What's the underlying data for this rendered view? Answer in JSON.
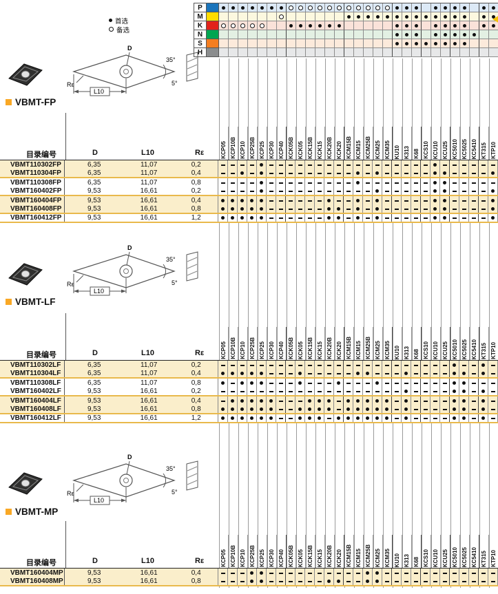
{
  "legend": {
    "first_choice": "首选",
    "alternate": "备选"
  },
  "grades": [
    "KCP05",
    "KCP10B",
    "KCP10",
    "KCP25B",
    "KCP25",
    "KCP30",
    "KCP40",
    "KCK05B",
    "KCK05",
    "KCK15B",
    "KCK15",
    "KCK20B",
    "KCK20",
    "KCM15B",
    "KCM15",
    "KCM25B",
    "KCM25",
    "KCM35",
    "KU10",
    "K313",
    "K68",
    "KCS10",
    "KCU10",
    "KCU25",
    "KC5010",
    "KC5025",
    "KC5410",
    "KT315",
    "KTP10"
  ],
  "iso_matrix": {
    "rows": [
      {
        "letter": "P",
        "color": "#1B75BC",
        "tint": "#DCE9F6",
        "cells": "FFFFFFFOOOOOOOOOOOFFF-FFFF-FF"
      },
      {
        "letter": "M",
        "color": "#FFDD00",
        "tint": "#FCF8DF",
        "cells": "------O------FFFFFFFFFFFFF-FF"
      },
      {
        "letter": "K",
        "color": "#E2231A",
        "tint": "#FAE2D9",
        "cells": "OOOOO--FFFFFF-----FFF-FFFF-FF"
      },
      {
        "letter": "N",
        "color": "#00A551",
        "tint": "#E3F0E3",
        "cells": "------------------FFF-FFFFF--"
      },
      {
        "letter": "S",
        "color": "#F57E20",
        "tint": "#FCEADB",
        "cells": "------------------FFFFFFFF---"
      },
      {
        "letter": "H",
        "color": "#8B8D8E",
        "tint": "#E7E8E9",
        "cells": "-----------------------------"
      }
    ]
  },
  "columns": {
    "catalog": "目录编号",
    "d": "D",
    "l10": "L10",
    "re": "Rε"
  },
  "diagram": {
    "d": "D",
    "l10": "L10",
    "re": "Rε",
    "nose_angle": "35°",
    "clearance_angle": "5°"
  },
  "sections": [
    {
      "title": "VBMT-FP",
      "rows": [
        {
          "catalog": "VBMT110302FP",
          "d": "6,35",
          "l10": "11,07",
          "re": "0,2",
          "shaded": true,
          "cells": "----F-----------------F------"
        },
        {
          "catalog": "VBMT110304FP",
          "d": "6,35",
          "l10": "11,07",
          "re": "0,4",
          "shaded": true,
          "cells": "--F-F---------F-F-----FF----F"
        },
        {
          "catalog": "VBMT110308FP",
          "d": "6,35",
          "l10": "11,07",
          "re": "0,8",
          "shaded": false,
          "cells": "----F---------F-------FF-----"
        },
        {
          "catalog": "VBMT160402FP",
          "d": "9,53",
          "l10": "16,61",
          "re": "0,2",
          "shaded": false,
          "cells": "----F-----------F-----FF----F"
        },
        {
          "catalog": "VBMT160404FP",
          "d": "9,53",
          "l10": "16,61",
          "re": "0,4",
          "shaded": true,
          "cells": "FFFFF------F--F-F-----FF----F"
        },
        {
          "catalog": "VBMT160408FP",
          "d": "9,53",
          "l10": "16,61",
          "re": "0,8",
          "shaded": true,
          "cells": "FFFFF------FF-F-F-----FF----F"
        },
        {
          "catalog": "VBMT160412FP",
          "d": "9,53",
          "l10": "16,61",
          "re": "1,2",
          "shaded": false,
          "cells": "FFFFF------FF-F-F-----FF----F"
        }
      ]
    },
    {
      "title": "VBMT-LF",
      "rows": [
        {
          "catalog": "VBMT110302LF",
          "d": "6,35",
          "l10": "11,07",
          "re": "0,2",
          "shaded": true,
          "cells": "------------------------F--F-"
        },
        {
          "catalog": "VBMT110304LF",
          "d": "6,35",
          "l10": "11,07",
          "re": "0,4",
          "shaded": true,
          "cells": "FFFFF---F-----FF---F----FF-F-"
        },
        {
          "catalog": "VBMT110308LF",
          "d": "6,35",
          "l10": "11,07",
          "re": "0,8",
          "shaded": false,
          "cells": "F-FFF---F---F---F-------FF---"
        },
        {
          "catalog": "VBMT160402LF",
          "d": "9,53",
          "l10": "16,61",
          "re": "0,2",
          "shaded": false,
          "cells": "-------------------F----FF-F-"
        },
        {
          "catalog": "VBMT160404LF",
          "d": "9,53",
          "l10": "16,61",
          "re": "0,4",
          "shaded": true,
          "cells": "-FFFFF---FFF-FFFFF-F----FF-F-"
        },
        {
          "catalog": "VBMT160408LF",
          "d": "9,53",
          "l10": "16,61",
          "re": "0,8",
          "shaded": true,
          "cells": "FFFFFF--FFFF-FFFFF-F----FF-F-"
        },
        {
          "catalog": "VBMT160412LF",
          "d": "9,53",
          "l10": "16,61",
          "re": "1,2",
          "shaded": false,
          "cells": "FFFFFF--FFF-FFFFFF-F----FF-F-"
        }
      ]
    },
    {
      "title": "VBMT-MP",
      "rows": [
        {
          "catalog": "VBMT160404MP",
          "d": "9,53",
          "l10": "16,61",
          "re": "0,4",
          "shaded": true,
          "cells": "---FF----------FF------------"
        },
        {
          "catalog": "VBMT160408MP",
          "d": "9,53",
          "l10": "16,61",
          "re": "0,8",
          "shaded": true,
          "cells": "---FF------FF--FF------------"
        }
      ]
    }
  ]
}
